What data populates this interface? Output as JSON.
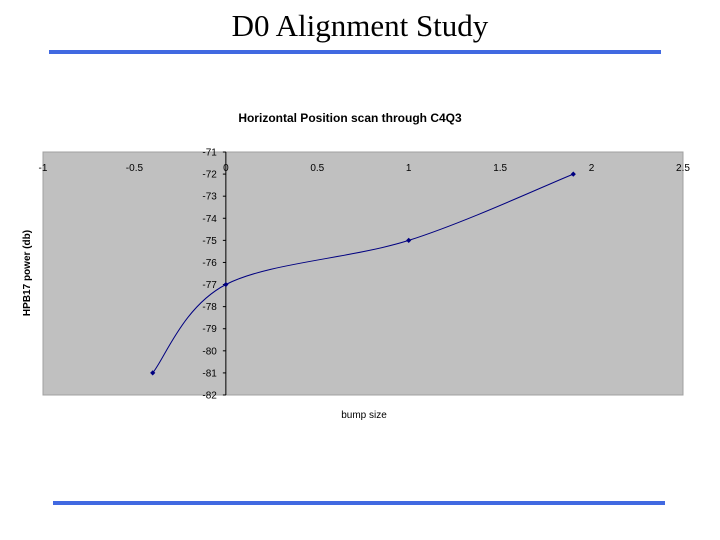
{
  "slide": {
    "title": "D0 Alignment Study",
    "rule_color": "#4169e1"
  },
  "chart_data": {
    "type": "line",
    "title": "Horizontal Position scan through C4Q3",
    "xlabel": "bump size",
    "ylabel": "HPB17 power (db)",
    "xlim": [
      -1,
      2.5
    ],
    "ylim": [
      -82,
      -71
    ],
    "xticks": [
      "-1",
      "-0.5",
      "0",
      "0.5",
      "1",
      "1.5",
      "2",
      "2.5"
    ],
    "yticks": [
      "-71",
      "-72",
      "-73",
      "-74",
      "-75",
      "-76",
      "-77",
      "-78",
      "-79",
      "-80",
      "-81",
      "-82"
    ],
    "grid": false,
    "legend": "none",
    "plot_background": "#c0c0c0",
    "line_color": "#000080",
    "series": [
      {
        "x": [
          -0.4,
          0,
          1,
          1.9
        ],
        "y": [
          -81,
          -77,
          -75,
          -72
        ]
      }
    ]
  }
}
